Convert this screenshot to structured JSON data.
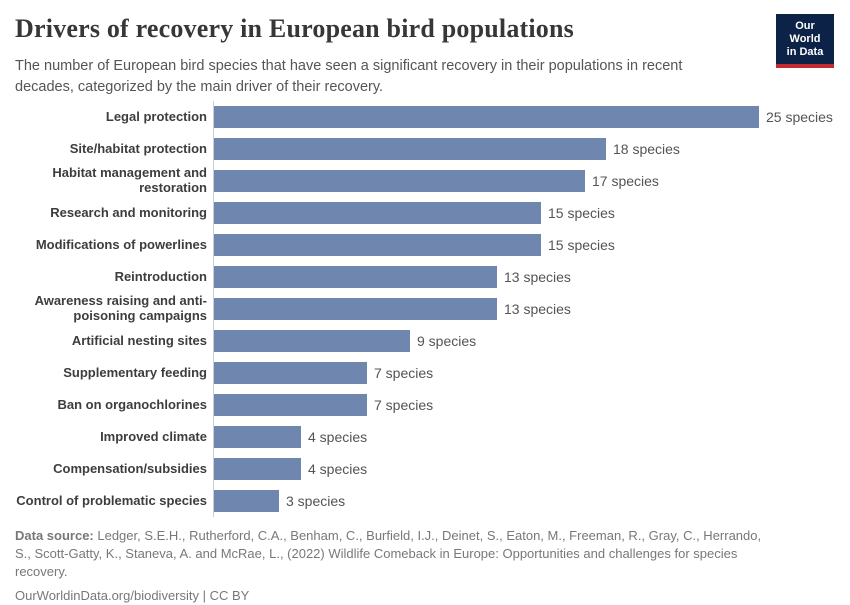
{
  "header": {
    "title": "Drivers of recovery in European bird populations",
    "subtitle": "The number of European bird species that have seen a significant recovery in their populations in recent decades, categorized by the main driver of their recovery."
  },
  "logo": {
    "line1": "Our World",
    "line2": "in Data",
    "bg_color": "#0d2247",
    "accent_color": "#c12b31"
  },
  "chart_data": {
    "type": "bar",
    "orientation": "horizontal",
    "title": "Drivers of recovery in European bird populations",
    "categories": [
      "Legal protection",
      "Site/habitat protection",
      "Habitat management and restoration",
      "Research and monitoring",
      "Modifications of powerlines",
      "Reintroduction",
      "Awareness raising and anti-poisoning campaigns",
      "Artificial nesting sites",
      "Supplementary feeding",
      "Ban on organochlorines",
      "Improved climate",
      "Compensation/subsidies",
      "Control of problematic species"
    ],
    "values": [
      25,
      18,
      17,
      15,
      15,
      13,
      13,
      9,
      7,
      7,
      4,
      4,
      3
    ],
    "value_suffix": " species",
    "xlabel": "",
    "ylabel": "",
    "xlim": [
      0,
      25
    ],
    "grid": false,
    "legend": false,
    "bar_color": "#6f87ae",
    "label_color": "#3d3d3d",
    "value_label_color": "#545454"
  },
  "footer": {
    "source_label": "Data source:",
    "source_text": " Ledger, S.E.H., Rutherford, C.A., Benham, C., Burfield, I.J., Deinet, S., Eaton, M., Freeman, R., Gray, C., Herrando, S., Scott-Gatty, K., Staneva, A. and McRae, L., (2022) Wildlife Comeback in Europe: Opportunities and challenges for species recovery.",
    "link": "OurWorldinData.org/biodiversity",
    "separator": " | ",
    "license": "CC BY"
  }
}
